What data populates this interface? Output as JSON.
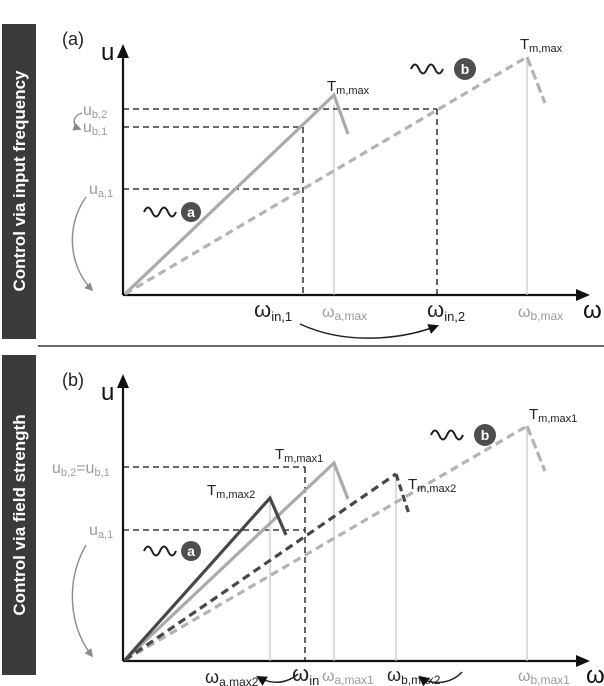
{
  "panel_a": {
    "side_label": "Control via input frequency",
    "panel_label": "(a)",
    "y_axis": "u",
    "x_axis": "ω",
    "y_labels": [
      {
        "main": "u",
        "sub": "b,2"
      },
      {
        "main": "u",
        "sub": "b,1"
      },
      {
        "main": "u",
        "sub": "a,1"
      }
    ],
    "x_labels": [
      {
        "main": "ω",
        "sub": "in,1"
      },
      {
        "main": "ω",
        "sub": "a,max"
      },
      {
        "main": "ω",
        "sub": "in,2"
      },
      {
        "main": "ω",
        "sub": "b,max"
      }
    ],
    "torque_labels": [
      {
        "main": "T",
        "sub": "m,max"
      },
      {
        "main": "T",
        "sub": "m,max"
      }
    ],
    "badges": [
      "a",
      "b"
    ]
  },
  "panel_b": {
    "side_label": "Control via field strength",
    "panel_label": "(b)",
    "y_axis": "u",
    "x_axis": "ω",
    "y_labels": [
      {
        "main": "u",
        "sub": "b,2",
        "eq": "=u",
        "sub2": "b,1"
      },
      {
        "main": "u",
        "sub": "a,1"
      }
    ],
    "x_labels": [
      {
        "main": "ω",
        "sub": "in"
      },
      {
        "main": "ω",
        "sub": "a,max1"
      },
      {
        "main": "ω",
        "sub": "b,max2"
      },
      {
        "main": "ω",
        "sub": "b,max1"
      },
      {
        "main": "ω",
        "sub": "a,max2"
      }
    ],
    "torque_labels": [
      {
        "main": "T",
        "sub": "m,max1"
      },
      {
        "main": "T",
        "sub": "m,max2"
      },
      {
        "main": "T",
        "sub": "m,max2"
      },
      {
        "main": "T",
        "sub": "m,max1"
      }
    ],
    "badges": [
      "a",
      "b"
    ]
  },
  "colors": {
    "side_band": "#3a3a3a",
    "solid_light": "#aaaaaa",
    "solid_dark": "#474747",
    "dashed_light": "#b3b3b3",
    "label_gray": "#9b9b9b"
  }
}
